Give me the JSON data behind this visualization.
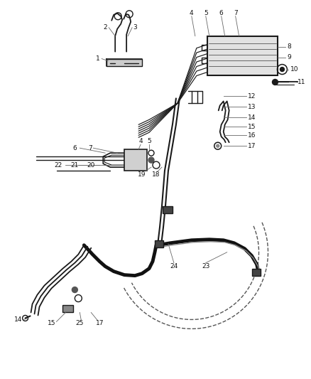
{
  "bg_color": "#ffffff",
  "line_color": "#1a1a1a",
  "label_color": "#111111",
  "figsize": [
    4.38,
    5.33
  ],
  "dpi": 100,
  "fs": 6.5
}
